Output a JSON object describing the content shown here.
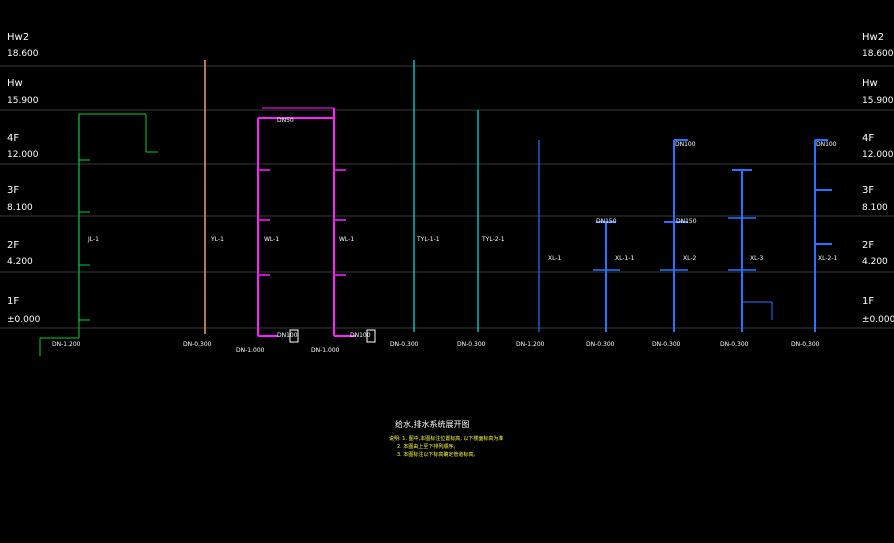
{
  "levels": [
    {
      "name": "Hw2",
      "elev": "18.600"
    },
    {
      "name": "Hw",
      "elev": "15.900"
    },
    {
      "name": "4F",
      "elev": "12.000"
    },
    {
      "name": "3F",
      "elev": "8.100"
    },
    {
      "name": "2F",
      "elev": "4.200"
    },
    {
      "name": "1F",
      "elev": "±0.000"
    }
  ],
  "risers": [
    {
      "label": "JL-1"
    },
    {
      "label": "YL-1"
    },
    {
      "label": "WL-1"
    },
    {
      "label": "WL-1"
    },
    {
      "label": "TYL-1-1"
    },
    {
      "label": "TYL-2-1"
    },
    {
      "label": "XL-1"
    },
    {
      "label": "XL-1-1"
    },
    {
      "label": "XL-2"
    },
    {
      "label": "XL-3"
    },
    {
      "label": "XL-2-1"
    }
  ],
  "bottom_labels": [
    "DN-1.200",
    "DN-0.300",
    "DN-1.000",
    "DN-1.000",
    "DN-0.300",
    "DN-0.300",
    "DN-1.200",
    "DN-0.300",
    "DN-0.300",
    "DN-0.300",
    "DN-0.300"
  ],
  "pipe_sizes": [
    "DN50",
    "DN100",
    "DN100",
    "DN150",
    "DN150",
    "DN100",
    "DN100"
  ],
  "colors": {
    "grid": "#3a3a3a",
    "water_supply": "#00cc44",
    "rain": "#ffb060",
    "waste": "#ff22ff",
    "cyan": "#00e8e8",
    "fire": "#2a72ff",
    "note": "#ffff40"
  },
  "drawing_title": "给水,排水系统展开图",
  "notes": [
    "说明: 1. 图中,本图标注位置标高, 以下楼面标高为准",
    "2. 本图由上至下排列顺序。",
    "3. 本图标注以下标高确定管道标高。"
  ]
}
